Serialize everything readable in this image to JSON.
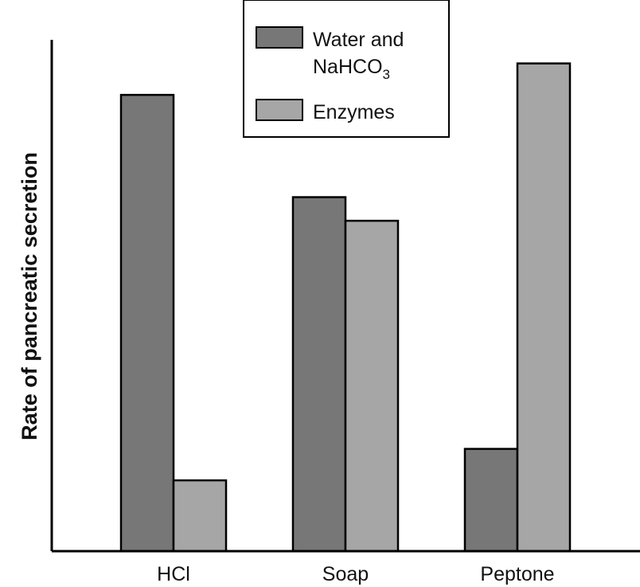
{
  "chart_data": {
    "type": "bar",
    "title": "",
    "xlabel": "",
    "ylabel": "Rate of pancreatic secretion",
    "categories": [
      "HCl",
      "Soap",
      "Peptone"
    ],
    "series": [
      {
        "name": "Water and NaHCO3",
        "values": [
          5.8,
          4.5,
          1.3
        ],
        "color": "#777777"
      },
      {
        "name": "Enzymes",
        "values": [
          0.9,
          4.2,
          6.2
        ],
        "color": "#a6a6a6"
      }
    ],
    "ylim": [
      0,
      6.5
    ],
    "grid": false,
    "legend_position": "top-center"
  }
}
